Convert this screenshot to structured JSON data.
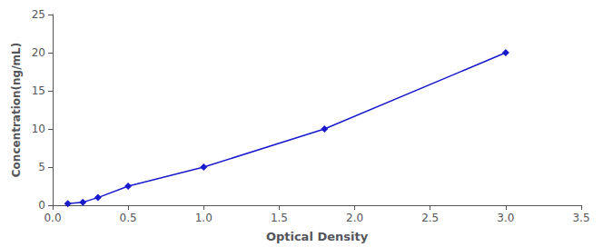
{
  "chart_data": {
    "type": "line",
    "xlabel": "Optical Density",
    "ylabel": "Concentration(ng/mL)",
    "x": [
      0.1,
      0.2,
      0.3,
      0.5,
      1.0,
      1.8,
      3.0
    ],
    "values": [
      0.2,
      0.4,
      1.0,
      2.5,
      5.0,
      10.0,
      20.0
    ],
    "xlim": [
      0,
      3.5
    ],
    "ylim": [
      0,
      25
    ],
    "xticks": [
      {
        "value": 0,
        "label": "0.0"
      },
      0.5,
      {
        "value": 1,
        "label": "1.0"
      },
      1.5,
      {
        "value": 2,
        "label": "2.0"
      },
      2.5,
      {
        "value": 3,
        "label": "3.0"
      },
      3.5
    ],
    "yticks": [
      0,
      5,
      10,
      15,
      20,
      25
    ],
    "color": "#1a1acd",
    "marker": "diamond",
    "grid": false
  }
}
